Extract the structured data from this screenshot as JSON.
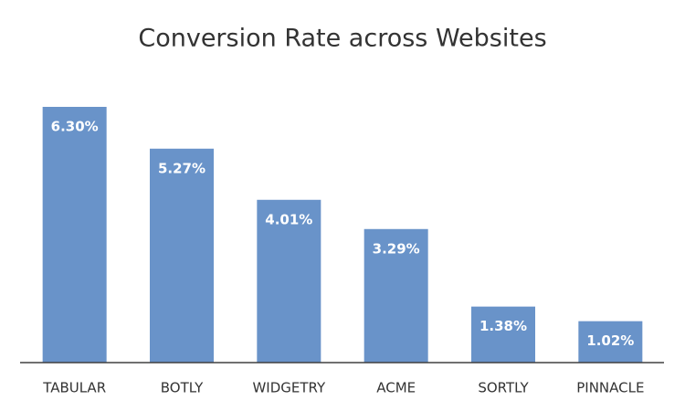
{
  "chart_data": {
    "type": "bar",
    "title": "Conversion Rate across Websites",
    "categories": [
      "TABULAR",
      "BOTLY",
      "WIDGETRY",
      "ACME",
      "SORTLY",
      "PINNACLE"
    ],
    "values": [
      6.3,
      5.27,
      4.01,
      3.29,
      1.38,
      1.02
    ],
    "value_labels": [
      "6.30%",
      "5.27%",
      "4.01%",
      "3.29%",
      "1.38%",
      "1.02%"
    ],
    "color": "#6993c9"
  }
}
